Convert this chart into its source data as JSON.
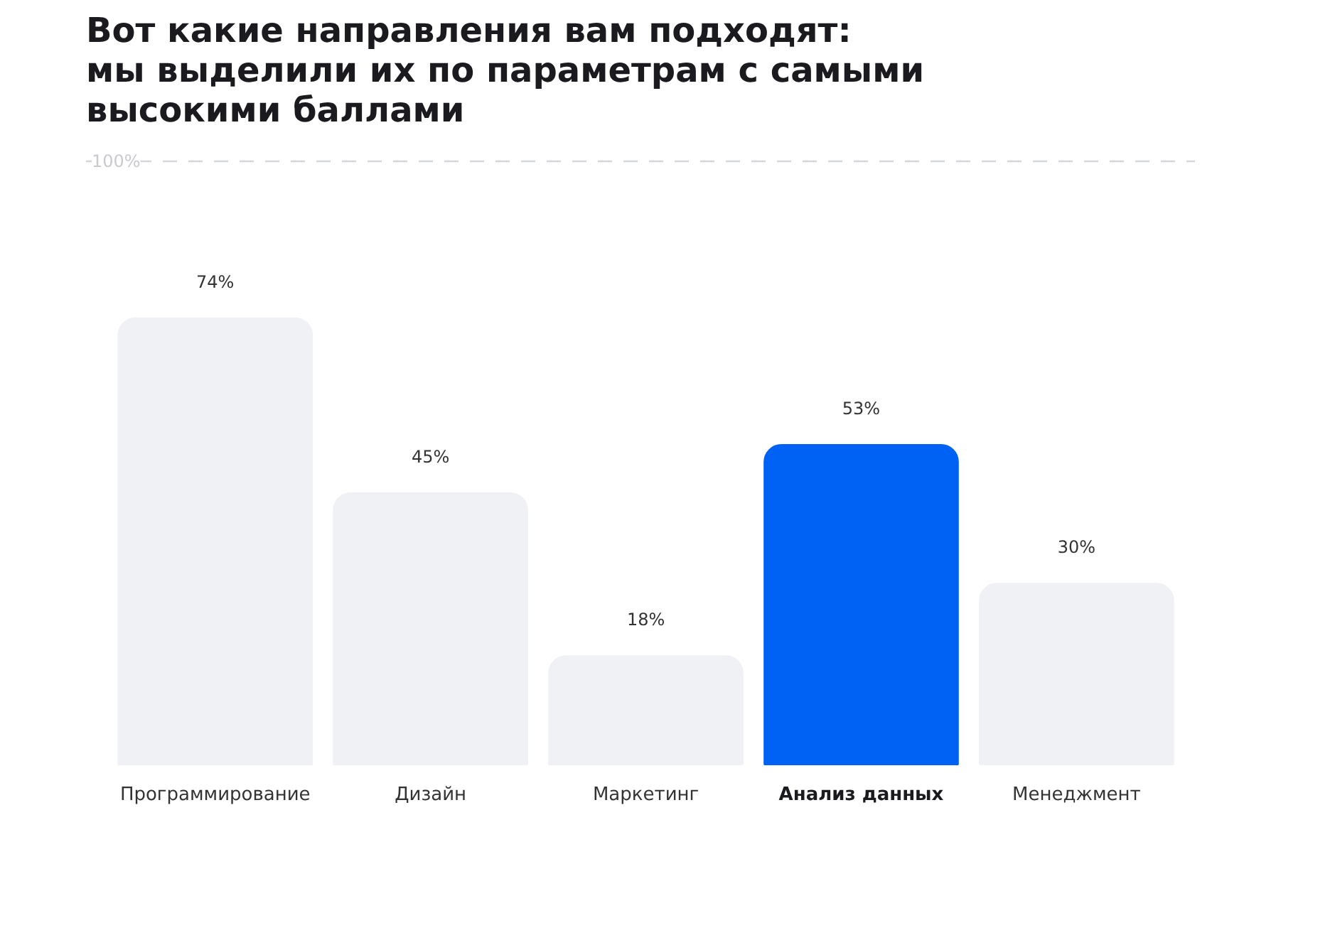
{
  "chart_data": {
    "type": "bar",
    "title": "Вот какие направления вам подходят: мы выделили их по параметрам с самыми высокими баллами",
    "categories": [
      "Программирование",
      "Дизайн",
      "Маркетинг",
      "Анализ данных",
      "Менеджмент"
    ],
    "values": [
      74,
      45,
      18,
      53,
      30
    ],
    "value_labels": [
      "74%",
      "45%",
      "18%",
      "53%",
      "30%"
    ],
    "colors": [
      "#f0f1f5",
      "#f0f1f5",
      "#f0f1f5",
      "#0062f5",
      "#f0f1f5"
    ],
    "ref_lines": [
      {
        "axis": "y",
        "value": 100,
        "label": "100%",
        "color": "#d4d6dc",
        "line_style": "dashed"
      }
    ],
    "grid": false
  }
}
